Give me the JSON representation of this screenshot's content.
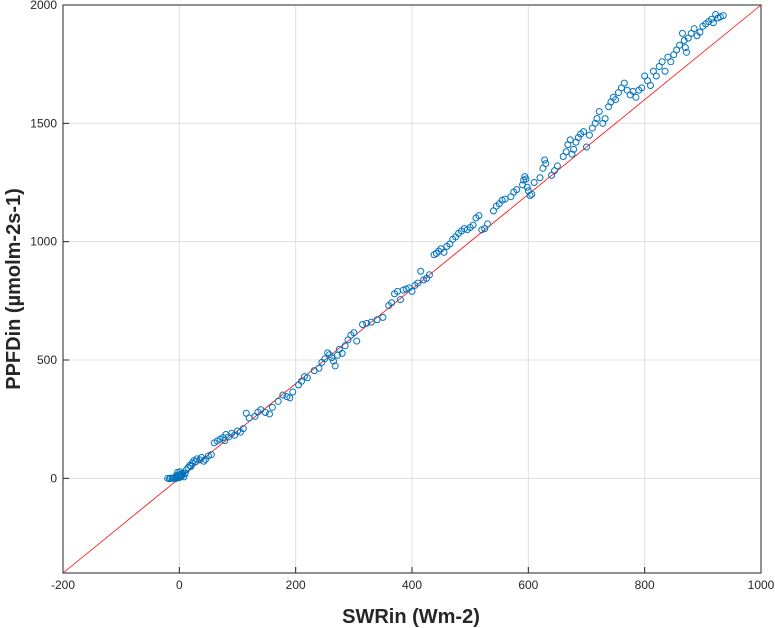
{
  "chart_data": {
    "type": "scatter",
    "xlabel": "SWRin (Wm-2)",
    "ylabel": "PPFDin (µmolm-2s-1)",
    "xlim": [
      -200,
      1000
    ],
    "ylim": [
      -400,
      2000
    ],
    "xticks": [
      -200,
      0,
      200,
      400,
      600,
      800,
      1000
    ],
    "yticks": [
      0,
      500,
      1000,
      1500,
      2000
    ],
    "xtick_labels": [
      "-200",
      "0",
      "200",
      "400",
      "600",
      "800",
      "1000"
    ],
    "ytick_labels": [
      "0",
      "500",
      "1000",
      "1500",
      "2000"
    ],
    "grid": true,
    "marker_color": "#0072BD",
    "reference_line": {
      "x": [
        -200,
        1000
      ],
      "y": [
        -400,
        2000
      ],
      "color": "#ff0000"
    },
    "series": [
      {
        "marker": "circle",
        "points": [
          [
            -20,
            0
          ],
          [
            -17,
            -2
          ],
          [
            -15,
            1
          ],
          [
            -12,
            0
          ],
          [
            -10,
            2
          ],
          [
            -8,
            -3
          ],
          [
            -6,
            4
          ],
          [
            -4,
            1
          ],
          [
            -2,
            6
          ],
          [
            0,
            3
          ],
          [
            2,
            8
          ],
          [
            4,
            10
          ],
          [
            -5,
            12
          ],
          [
            -1,
            15
          ],
          [
            3,
            18
          ],
          [
            6,
            22
          ],
          [
            -3,
            25
          ],
          [
            1,
            28
          ],
          [
            5,
            14
          ],
          [
            8,
            6
          ],
          [
            10,
            20
          ],
          [
            12,
            35
          ],
          [
            15,
            45
          ],
          [
            18,
            55
          ],
          [
            20,
            50
          ],
          [
            22,
            65
          ],
          [
            25,
            75
          ],
          [
            28,
            70
          ],
          [
            30,
            82
          ],
          [
            35,
            78
          ],
          [
            38,
            88
          ],
          [
            42,
            72
          ],
          [
            45,
            80
          ],
          [
            50,
            95
          ],
          [
            55,
            100
          ],
          [
            60,
            150
          ],
          [
            65,
            158
          ],
          [
            70,
            165
          ],
          [
            75,
            172
          ],
          [
            78,
            160
          ],
          [
            80,
            185
          ],
          [
            85,
            175
          ],
          [
            90,
            190
          ],
          [
            95,
            182
          ],
          [
            100,
            200
          ],
          [
            105,
            195
          ],
          [
            110,
            210
          ],
          [
            115,
            275
          ],
          [
            120,
            255
          ],
          [
            130,
            262
          ],
          [
            135,
            280
          ],
          [
            140,
            290
          ],
          [
            148,
            278
          ],
          [
            155,
            272
          ],
          [
            160,
            300
          ],
          [
            170,
            325
          ],
          [
            178,
            352
          ],
          [
            185,
            345
          ],
          [
            190,
            340
          ],
          [
            195,
            365
          ],
          [
            205,
            395
          ],
          [
            210,
            410
          ],
          [
            215,
            430
          ],
          [
            220,
            425
          ],
          [
            232,
            455
          ],
          [
            240,
            465
          ],
          [
            245,
            490
          ],
          [
            250,
            505
          ],
          [
            255,
            530
          ],
          [
            258,
            522
          ],
          [
            262,
            510
          ],
          [
            265,
            495
          ],
          [
            268,
            475
          ],
          [
            272,
            520
          ],
          [
            275,
            545
          ],
          [
            280,
            528
          ],
          [
            285,
            560
          ],
          [
            290,
            585
          ],
          [
            295,
            605
          ],
          [
            300,
            615
          ],
          [
            305,
            580
          ],
          [
            315,
            650
          ],
          [
            322,
            655
          ],
          [
            330,
            660
          ],
          [
            340,
            670
          ],
          [
            350,
            680
          ],
          [
            360,
            730
          ],
          [
            365,
            742
          ],
          [
            370,
            780
          ],
          [
            375,
            790
          ],
          [
            380,
            755
          ],
          [
            385,
            795
          ],
          [
            390,
            800
          ],
          [
            395,
            805
          ],
          [
            400,
            790
          ],
          [
            405,
            815
          ],
          [
            410,
            825
          ],
          [
            415,
            875
          ],
          [
            420,
            838
          ],
          [
            425,
            845
          ],
          [
            430,
            860
          ],
          [
            438,
            945
          ],
          [
            442,
            950
          ],
          [
            446,
            960
          ],
          [
            450,
            970
          ],
          [
            455,
            955
          ],
          [
            460,
            980
          ],
          [
            465,
            990
          ],
          [
            470,
            1010
          ],
          [
            475,
            1020
          ],
          [
            480,
            1035
          ],
          [
            485,
            1045
          ],
          [
            490,
            1055
          ],
          [
            495,
            1050
          ],
          [
            500,
            1060
          ],
          [
            505,
            1070
          ],
          [
            510,
            1100
          ],
          [
            515,
            1110
          ],
          [
            520,
            1050
          ],
          [
            525,
            1055
          ],
          [
            530,
            1075
          ],
          [
            540,
            1130
          ],
          [
            545,
            1150
          ],
          [
            550,
            1160
          ],
          [
            555,
            1175
          ],
          [
            560,
            1180
          ],
          [
            570,
            1190
          ],
          [
            575,
            1210
          ],
          [
            580,
            1220
          ],
          [
            590,
            1240
          ],
          [
            592,
            1260
          ],
          [
            594,
            1275
          ],
          [
            596,
            1265
          ],
          [
            598,
            1230
          ],
          [
            600,
            1215
          ],
          [
            603,
            1195
          ],
          [
            606,
            1200
          ],
          [
            610,
            1250
          ],
          [
            620,
            1270
          ],
          [
            625,
            1310
          ],
          [
            628,
            1345
          ],
          [
            630,
            1330
          ],
          [
            640,
            1280
          ],
          [
            645,
            1300
          ],
          [
            650,
            1320
          ],
          [
            660,
            1360
          ],
          [
            665,
            1380
          ],
          [
            668,
            1410
          ],
          [
            672,
            1430
          ],
          [
            675,
            1370
          ],
          [
            678,
            1390
          ],
          [
            682,
            1420
          ],
          [
            686,
            1440
          ],
          [
            690,
            1455
          ],
          [
            695,
            1465
          ],
          [
            700,
            1400
          ],
          [
            705,
            1450
          ],
          [
            710,
            1480
          ],
          [
            715,
            1500
          ],
          [
            718,
            1520
          ],
          [
            722,
            1550
          ],
          [
            728,
            1500
          ],
          [
            732,
            1520
          ],
          [
            738,
            1570
          ],
          [
            742,
            1590
          ],
          [
            746,
            1610
          ],
          [
            750,
            1600
          ],
          [
            755,
            1630
          ],
          [
            760,
            1650
          ],
          [
            765,
            1670
          ],
          [
            770,
            1640
          ],
          [
            775,
            1620
          ],
          [
            780,
            1635
          ],
          [
            785,
            1610
          ],
          [
            790,
            1640
          ],
          [
            795,
            1650
          ],
          [
            800,
            1700
          ],
          [
            805,
            1680
          ],
          [
            810,
            1660
          ],
          [
            815,
            1720
          ],
          [
            820,
            1700
          ],
          [
            825,
            1740
          ],
          [
            830,
            1760
          ],
          [
            835,
            1720
          ],
          [
            840,
            1780
          ],
          [
            845,
            1760
          ],
          [
            850,
            1790
          ],
          [
            855,
            1810
          ],
          [
            860,
            1830
          ],
          [
            865,
            1880
          ],
          [
            868,
            1850
          ],
          [
            870,
            1820
          ],
          [
            872,
            1800
          ],
          [
            875,
            1860
          ],
          [
            880,
            1880
          ],
          [
            885,
            1900
          ],
          [
            890,
            1870
          ],
          [
            895,
            1885
          ],
          [
            900,
            1910
          ],
          [
            905,
            1920
          ],
          [
            910,
            1930
          ],
          [
            915,
            1940
          ],
          [
            918,
            1925
          ],
          [
            922,
            1960
          ],
          [
            926,
            1945
          ],
          [
            930,
            1950
          ],
          [
            935,
            1955
          ]
        ]
      }
    ]
  }
}
